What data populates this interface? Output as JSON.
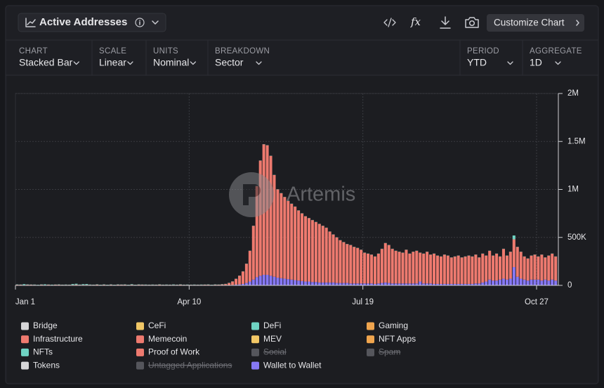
{
  "header": {
    "title": "Active Addresses",
    "button": "Customize Chart"
  },
  "controls": [
    {
      "label": "CHART",
      "value": "Stacked Bar"
    },
    {
      "label": "SCALE",
      "value": "Linear"
    },
    {
      "label": "UNITS",
      "value": "Nominal"
    },
    {
      "label": "BREAKDOWN",
      "value": "Sector"
    },
    {
      "label": "PERIOD",
      "value": "YTD"
    },
    {
      "label": "AGGREGATE",
      "value": "1D"
    }
  ],
  "watermark": "Artemis",
  "chart_data": {
    "type": "stacked-bar",
    "categories": [
      "Jan 1",
      null,
      null,
      null,
      null,
      null,
      null,
      null,
      null,
      null,
      null,
      null,
      null,
      null,
      null,
      null,
      null,
      null,
      null,
      null,
      null,
      null,
      null,
      null,
      null,
      null,
      null,
      null,
      null,
      null,
      null,
      null,
      null,
      null,
      null,
      null,
      null,
      null,
      null,
      null,
      null,
      null,
      null,
      null,
      null,
      null,
      null,
      null,
      null,
      null,
      "Apr 10",
      null,
      null,
      null,
      null,
      null,
      null,
      null,
      null,
      null,
      null,
      null,
      null,
      null,
      null,
      null,
      null,
      null,
      null,
      null,
      null,
      null,
      null,
      null,
      null,
      null,
      null,
      null,
      null,
      null,
      null,
      null,
      null,
      null,
      null,
      null,
      null,
      null,
      null,
      null,
      null,
      null,
      null,
      null,
      null,
      null,
      null,
      null,
      null,
      null,
      "Jul 19",
      null,
      null,
      null,
      null,
      null,
      null,
      null,
      null,
      null,
      null,
      null,
      null,
      null,
      null,
      null,
      null,
      null,
      null,
      null,
      null,
      null,
      null,
      null,
      null,
      null,
      null,
      null,
      null,
      null,
      null,
      null,
      null,
      null,
      null,
      null,
      null,
      null,
      null,
      null,
      null,
      null,
      null,
      null,
      null,
      null,
      null,
      null,
      null,
      null,
      "Oct 27",
      null,
      null,
      null,
      null,
      null
    ],
    "ylim": [
      0,
      2000000
    ],
    "yticks": [
      0,
      {
        "value": 500000,
        "label": "500K"
      },
      {
        "value": 1000000,
        "label": "1M"
      },
      {
        "value": 1500000,
        "label": "1.5M"
      },
      {
        "value": 2000000,
        "label": "2M"
      }
    ],
    "grid": true,
    "legend": [
      {
        "name": "Bridge",
        "color": "#d6d6d8",
        "hidden": false
      },
      {
        "name": "CeFi",
        "color": "#f1c766",
        "hidden": false
      },
      {
        "name": "DeFi",
        "color": "#6fd3c3",
        "hidden": false
      },
      {
        "name": "Gaming",
        "color": "#f0a54e",
        "hidden": false
      },
      {
        "name": "Infrastructure",
        "color": "#ee7a6f",
        "hidden": false
      },
      {
        "name": "Memecoin",
        "color": "#ee7a6f",
        "hidden": false
      },
      {
        "name": "MEV",
        "color": "#f1c766",
        "hidden": false
      },
      {
        "name": "NFT Apps",
        "color": "#f0a54e",
        "hidden": false
      },
      {
        "name": "NFTs",
        "color": "#6fd3c3",
        "hidden": false
      },
      {
        "name": "Proof of Work",
        "color": "#ee7a6f",
        "hidden": false
      },
      {
        "name": "Social",
        "color": "#55565c",
        "hidden": true
      },
      {
        "name": "Spam",
        "color": "#55565c",
        "hidden": true
      },
      {
        "name": "Tokens",
        "color": "#d6d6d8",
        "hidden": false
      },
      {
        "name": "Untagged Applications",
        "color": "#55565c",
        "hidden": true
      },
      {
        "name": "Wallet to Wallet",
        "color": "#8678f5",
        "hidden": false
      }
    ],
    "series": [
      {
        "legend": 14,
        "values": [
          1000,
          2000,
          1000,
          2000,
          1000,
          2000,
          1000,
          2000,
          1000,
          2000,
          1000,
          2000,
          1000,
          2000,
          1000,
          2000,
          1000,
          2000,
          1000,
          2000,
          1000,
          2000,
          1000,
          2000,
          1000,
          2000,
          1000,
          2000,
          1000,
          2000,
          1000,
          2000,
          1000,
          2000,
          1000,
          2000,
          1000,
          2000,
          1000,
          2000,
          1000,
          2000,
          1000,
          2000,
          1000,
          2000,
          1000,
          2000,
          1000,
          2000,
          1000,
          2000,
          1000,
          2000,
          1000,
          2000,
          1000,
          2000,
          1000,
          2000,
          2000,
          3000,
          5000,
          8000,
          10000,
          15000,
          25000,
          40000,
          60000,
          85000,
          100000,
          110000,
          110000,
          100000,
          90000,
          80000,
          75000,
          70000,
          65000,
          60000,
          55000,
          50000,
          45000,
          40000,
          40000,
          35000,
          35000,
          30000,
          30000,
          30000,
          30000,
          30000,
          25000,
          25000,
          25000,
          25000,
          20000,
          20000,
          20000,
          20000,
          20000,
          20000,
          20000,
          15000,
          20000,
          25000,
          30000,
          25000,
          20000,
          20000,
          20000,
          20000,
          20000,
          20000,
          20000,
          20000,
          40000,
          20000,
          20000,
          20000,
          15000,
          15000,
          15000,
          15000,
          15000,
          15000,
          15000,
          15000,
          15000,
          15000,
          15000,
          15000,
          20000,
          20000,
          30000,
          40000,
          60000,
          50000,
          50000,
          60000,
          70000,
          60000,
          70000,
          190000,
          90000,
          70000,
          60000,
          50000,
          60000,
          60000,
          60000,
          50000,
          60000,
          50000,
          60000,
          50000
        ]
      },
      {
        "legend": 5,
        "values": [
          6000,
          5000,
          4000,
          5000,
          6000,
          4000,
          3000,
          5000,
          4000,
          5000,
          4000,
          5000,
          6000,
          4000,
          5000,
          4000,
          5000,
          6000,
          5000,
          4000,
          5000,
          4000,
          5000,
          6000,
          4000,
          5000,
          4000,
          5000,
          4000,
          5000,
          6000,
          5000,
          4000,
          5000,
          4000,
          5000,
          6000,
          4000,
          5000,
          4000,
          5000,
          6000,
          5000,
          4000,
          5000,
          4000,
          5000,
          6000,
          5000,
          4000,
          5000,
          4000,
          5000,
          4000,
          6000,
          5000,
          4000,
          5000,
          6000,
          8000,
          12000,
          22000,
          35000,
          60000,
          90000,
          130000,
          200000,
          320000,
          560000,
          950000,
          1200000,
          1360000,
          1350000,
          1250000,
          1060000,
          920000,
          885000,
          850000,
          815000,
          790000,
          765000,
          730000,
          705000,
          680000,
          660000,
          645000,
          625000,
          610000,
          590000,
          570000,
          530000,
          500000,
          475000,
          445000,
          425000,
          405000,
          400000,
          380000,
          370000,
          350000,
          320000,
          310000,
          300000,
          285000,
          310000,
          355000,
          410000,
          395000,
          360000,
          340000,
          330000,
          320000,
          350000,
          310000,
          330000,
          340000,
          300000,
          310000,
          330000,
          300000,
          315000,
          295000,
          285000,
          305000,
          295000,
          275000,
          285000,
          295000,
          275000,
          285000,
          295000,
          285000,
          300000,
          270000,
          300000,
          270000,
          300000,
          260000,
          280000,
          240000,
          310000,
          250000,
          280000,
          290000,
          310000,
          280000,
          240000,
          230000,
          250000,
          260000,
          240000,
          270000,
          230000,
          260000,
          270000,
          250000
        ]
      },
      {
        "legend": 2,
        "values": [
          3000,
          2000,
          8000,
          3000,
          2000,
          3000,
          2000,
          3000,
          6000,
          2000,
          3000,
          2000,
          3000,
          2000,
          3000,
          2000,
          8000,
          9000,
          3000,
          7000,
          8000,
          3000,
          2000,
          3000,
          2000,
          3000,
          2000,
          3000,
          2000,
          3000,
          2000,
          3000,
          2000,
          5000,
          2000,
          3000,
          2000,
          3000,
          2000,
          3000,
          2000,
          3000,
          2000,
          3000,
          2000,
          4000,
          2000,
          3000,
          2000,
          3000,
          2000,
          3000,
          2000,
          3000,
          2000,
          3000,
          2000,
          3000,
          2000,
          3000,
          2000,
          2000,
          2000,
          2000,
          2000,
          2000,
          2000,
          2000,
          2000,
          2000,
          2000,
          2000,
          2000,
          2000,
          2000,
          2000,
          2000,
          2000,
          2000,
          2000,
          2000,
          2000,
          2000,
          2000,
          2000,
          2000,
          2000,
          2000,
          2000,
          2000,
          2000,
          2000,
          2000,
          2000,
          2000,
          2000,
          2000,
          2000,
          2000,
          2000,
          2000,
          2000,
          2000,
          2000,
          2000,
          2000,
          2000,
          2000,
          2000,
          2000,
          2000,
          2000,
          2000,
          2000,
          2000,
          2000,
          2000,
          2000,
          2000,
          2000,
          2000,
          2000,
          2000,
          2000,
          2000,
          2000,
          2000,
          2000,
          2000,
          2000,
          2000,
          2000,
          2000,
          2000,
          2000,
          2000,
          2000,
          2000,
          2000,
          2000,
          2000,
          2000,
          2000,
          40000,
          2000,
          2000,
          2000,
          2000,
          2000,
          2000,
          2000,
          2000,
          2000,
          2000,
          2000,
          2000
        ]
      }
    ]
  }
}
